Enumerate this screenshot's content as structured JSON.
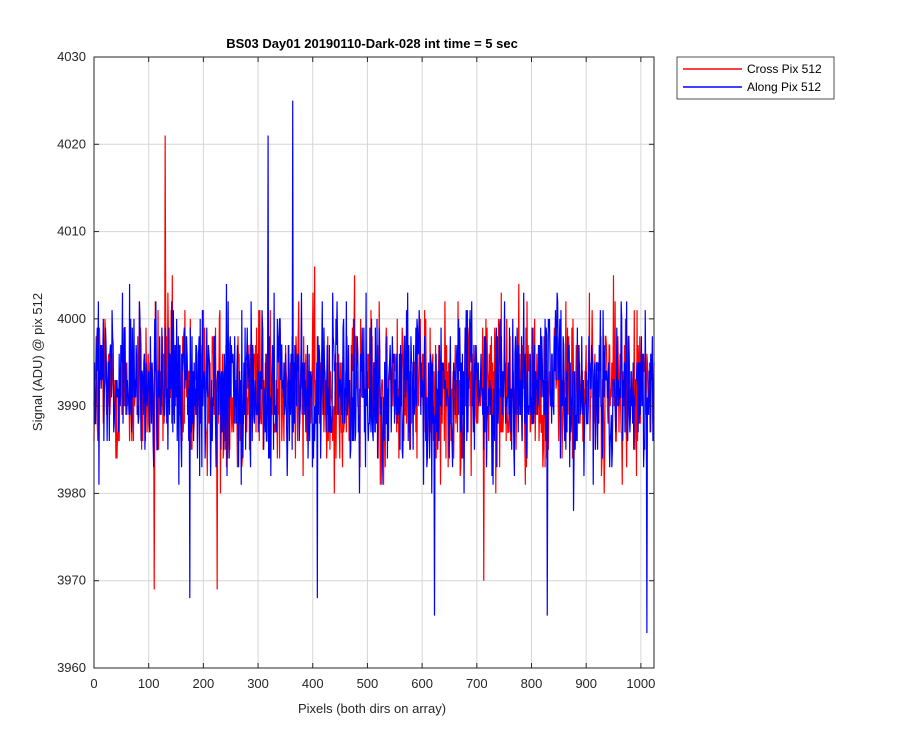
{
  "chart_data": {
    "type": "line",
    "title": "BS03 Day01 20190110-Dark-028 int time = 5 sec",
    "xlabel": "Pixels (both dirs on array)",
    "ylabel": "Signal (ADU) @ pix 512",
    "xlim": [
      0,
      1024
    ],
    "ylim": [
      3960,
      4030
    ],
    "xticks": [
      0,
      100,
      200,
      300,
      400,
      500,
      600,
      700,
      800,
      900,
      1000
    ],
    "yticks": [
      3960,
      3970,
      3980,
      3990,
      4000,
      4010,
      4020,
      4030
    ],
    "grid": true,
    "legend_position": "outside-top-right",
    "noise_model": {
      "sample_count": 1024,
      "mean": 3992,
      "amplitude": 9
    },
    "series": [
      {
        "name": "Cross Pix 512",
        "color": "#ff0000",
        "peaks": [
          [
            130,
            4021
          ],
          [
            110,
            3969
          ],
          [
            225,
            3969
          ],
          [
            712,
            3970
          ]
        ]
      },
      {
        "name": "Along Pix 512",
        "color": "#0000ff",
        "peaks": [
          [
            363,
            4025
          ],
          [
            1010,
            3964
          ],
          [
            622,
            3966
          ],
          [
            828,
            3966
          ],
          [
            175,
            3968
          ],
          [
            408,
            3968
          ],
          [
            318,
            4021
          ]
        ]
      }
    ]
  }
}
